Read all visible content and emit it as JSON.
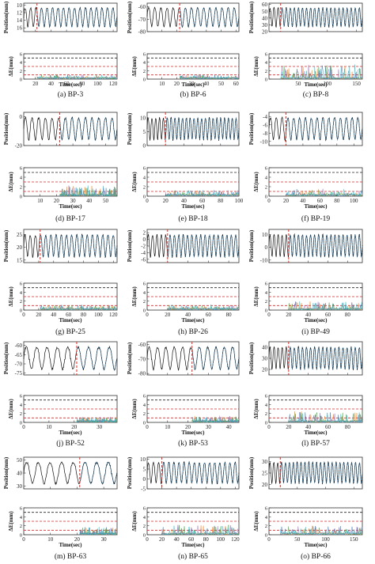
{
  "labels": {
    "position_ylabel": "Position(mm)",
    "error_ylabel": "ΔE(mm)",
    "xlabel": "Time(sec)"
  },
  "colors": {
    "measured": "#111111",
    "predicted": [
      "#1f77b4",
      "#ff7f0e",
      "#2ca02c",
      "#9467bd",
      "#17becf"
    ],
    "marker": "#e8251d",
    "threshold_high": "#222222",
    "threshold_mid": "#d62728",
    "threshold_low": "#d62728"
  },
  "chart_data": [
    {
      "caption": "(a) BP-3",
      "type": "line",
      "x_ticks": [
        20,
        40,
        60,
        80,
        100,
        120
      ],
      "xlim": [
        5,
        125
      ],
      "pos_ticks": [
        10,
        12,
        14,
        16
      ],
      "pos_ylim": [
        17,
        9.5
      ],
      "err_ticks": [
        0,
        2,
        4,
        6
      ],
      "err_ylim": [
        0,
        6
      ],
      "start": 22,
      "amp_scale": 0.45,
      "thresholds": [
        5,
        3,
        1
      ]
    },
    {
      "caption": "(b) BP-6",
      "type": "line",
      "x_ticks": [
        10,
        20,
        30,
        40,
        50,
        60
      ],
      "xlim": [
        0,
        62
      ],
      "pos_ticks": [
        -60,
        -70,
        -80
      ],
      "pos_ylim": [
        -80,
        -57
      ],
      "err_ticks": [
        0,
        2,
        4,
        6
      ],
      "err_ylim": [
        0,
        6
      ],
      "start": 22,
      "amp_scale": 0.5,
      "thresholds": [
        5,
        3,
        1
      ]
    },
    {
      "caption": "(c) BP-8",
      "type": "line",
      "x_ticks": [
        50,
        100,
        150
      ],
      "xlim": [
        0,
        160
      ],
      "pos_ticks": [
        20,
        30,
        40,
        50,
        60
      ],
      "pos_ylim": [
        20,
        62
      ],
      "err_ticks": [
        0,
        2,
        4,
        6
      ],
      "err_ylim": [
        0,
        6
      ],
      "start": 20,
      "amp_scale": 2.2,
      "thresholds": [
        5,
        3,
        1
      ]
    },
    {
      "caption": "(d) BP-17",
      "type": "line",
      "x_ticks": [
        10,
        20,
        30,
        40,
        50
      ],
      "xlim": [
        0,
        57
      ],
      "pos_ticks": [
        -20,
        0
      ],
      "pos_ylim": [
        -20,
        3
      ],
      "err_ticks": [
        0,
        2,
        4,
        6
      ],
      "err_ylim": [
        0,
        6
      ],
      "start": 22,
      "amp_scale": 1.4,
      "thresholds": [
        5,
        3,
        1
      ]
    },
    {
      "caption": "(e) BP-18",
      "type": "line",
      "x_ticks": [
        0,
        20,
        40,
        60,
        80,
        100
      ],
      "xlim": [
        0,
        100
      ],
      "pos_ticks": [
        0,
        5,
        10
      ],
      "pos_ylim": [
        0,
        12
      ],
      "err_ticks": [
        0,
        2,
        4,
        6
      ],
      "err_ylim": [
        0,
        6
      ],
      "start": 20,
      "amp_scale": 0.7,
      "thresholds": [
        5,
        3,
        1
      ]
    },
    {
      "caption": "(f) BP-19",
      "type": "line",
      "x_ticks": [
        0,
        20,
        40,
        60,
        80,
        100
      ],
      "xlim": [
        0,
        110
      ],
      "pos_ticks": [
        -4,
        -6,
        -8,
        -10
      ],
      "pos_ylim": [
        -11,
        -3
      ],
      "err_ticks": [
        0,
        2,
        4,
        6
      ],
      "err_ylim": [
        0,
        6
      ],
      "start": 20,
      "amp_scale": 0.8,
      "thresholds": [
        5,
        3,
        1
      ]
    },
    {
      "caption": "(g) BP-25",
      "type": "line",
      "x_ticks": [
        0,
        20,
        40,
        60,
        80,
        100,
        120
      ],
      "xlim": [
        0,
        125
      ],
      "pos_ticks": [
        15,
        20,
        25
      ],
      "pos_ylim": [
        14,
        27
      ],
      "err_ticks": [
        0,
        2,
        4,
        6
      ],
      "err_ylim": [
        0,
        6
      ],
      "start": 22,
      "amp_scale": 0.6,
      "thresholds": [
        5,
        3,
        1
      ]
    },
    {
      "caption": "(h) BP-26",
      "type": "line",
      "x_ticks": [
        0,
        20,
        40,
        60,
        80
      ],
      "xlim": [
        0,
        90
      ],
      "pos_ticks": [
        -6,
        -4,
        -2,
        0,
        2
      ],
      "pos_ylim": [
        -7,
        3
      ],
      "err_ticks": [
        0,
        2,
        4,
        6
      ],
      "err_ylim": [
        0,
        6
      ],
      "start": 20,
      "amp_scale": 0.6,
      "thresholds": [
        5,
        3,
        1
      ]
    },
    {
      "caption": "(i) BP-49",
      "type": "line",
      "x_ticks": [
        0,
        20,
        40,
        60,
        80
      ],
      "xlim": [
        0,
        95
      ],
      "pos_ticks": [
        -10,
        0,
        10
      ],
      "pos_ylim": [
        -12,
        14
      ],
      "err_ticks": [
        0,
        2,
        4,
        6
      ],
      "err_ylim": [
        0,
        6
      ],
      "start": 20,
      "amp_scale": 1.2,
      "thresholds": [
        5,
        3,
        1
      ]
    },
    {
      "caption": "(j) BP-52",
      "type": "line",
      "x_ticks": [
        0,
        10,
        20,
        30
      ],
      "xlim": [
        0,
        37
      ],
      "pos_ticks": [
        -60,
        -65,
        -70,
        -75
      ],
      "pos_ylim": [
        -76,
        -58
      ],
      "err_ticks": [
        0,
        2,
        4,
        6
      ],
      "err_ylim": [
        0,
        6
      ],
      "start": 21,
      "amp_scale": 0.6,
      "thresholds": [
        5,
        3,
        1
      ]
    },
    {
      "caption": "(k) BP-53",
      "type": "line",
      "x_ticks": [
        0,
        10,
        20,
        30,
        40
      ],
      "xlim": [
        0,
        45
      ],
      "pos_ticks": [
        -60,
        -70,
        -80
      ],
      "pos_ylim": [
        -81,
        -58
      ],
      "err_ticks": [
        0,
        2,
        4,
        6
      ],
      "err_ylim": [
        0,
        6
      ],
      "start": 22,
      "amp_scale": 0.8,
      "thresholds": [
        5,
        3,
        1
      ]
    },
    {
      "caption": "(l) BP-57",
      "type": "line",
      "x_ticks": [
        0,
        20,
        40,
        60,
        80
      ],
      "xlim": [
        0,
        95
      ],
      "pos_ticks": [
        20,
        30,
        40
      ],
      "pos_ylim": [
        15,
        45
      ],
      "err_ticks": [
        0,
        2,
        4,
        6
      ],
      "err_ylim": [
        0,
        6
      ],
      "start": 20,
      "amp_scale": 1.5,
      "thresholds": [
        5,
        3,
        1
      ]
    },
    {
      "caption": "(m) BP-63",
      "type": "line",
      "x_ticks": [
        0,
        10,
        20,
        30
      ],
      "xlim": [
        0,
        35
      ],
      "pos_ticks": [
        30,
        40,
        50
      ],
      "pos_ylim": [
        28,
        52
      ],
      "err_ticks": [
        0,
        2,
        4,
        6
      ],
      "err_ylim": [
        0,
        6
      ],
      "start": 21,
      "amp_scale": 1.0,
      "thresholds": [
        5,
        3,
        1
      ]
    },
    {
      "caption": "(n) BP-65",
      "type": "line",
      "x_ticks": [
        0,
        20,
        40,
        60,
        80,
        100,
        120
      ],
      "xlim": [
        0,
        125
      ],
      "pos_ticks": [
        -5,
        0,
        5,
        10
      ],
      "pos_ylim": [
        -5,
        11
      ],
      "err_ticks": [
        0,
        2,
        4,
        6
      ],
      "err_ylim": [
        0,
        6
      ],
      "start": 20,
      "amp_scale": 1.4,
      "thresholds": [
        5,
        3,
        1
      ]
    },
    {
      "caption": "(o) BP-66",
      "type": "line",
      "x_ticks": [
        0,
        50,
        100,
        150
      ],
      "xlim": [
        0,
        165
      ],
      "pos_ticks": [
        20,
        25,
        30
      ],
      "pos_ylim": [
        18,
        32
      ],
      "err_ticks": [
        0,
        2,
        4,
        6
      ],
      "err_ylim": [
        0,
        6
      ],
      "start": 20,
      "amp_scale": 1.2,
      "thresholds": [
        5,
        3,
        1
      ]
    }
  ]
}
